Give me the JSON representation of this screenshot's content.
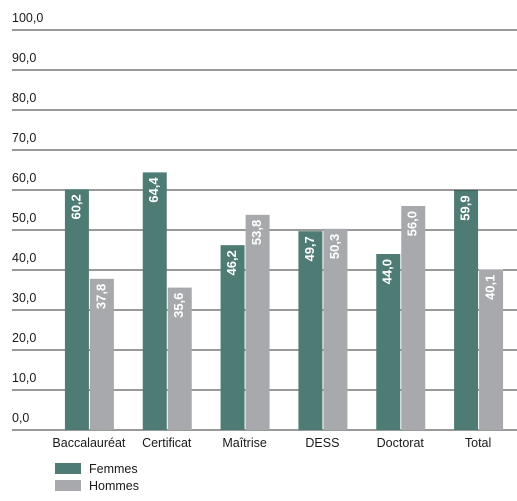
{
  "chart_data": {
    "type": "bar",
    "categories": [
      "Baccalauréat",
      "Certificat",
      "Maîtrise",
      "DESS",
      "Doctorat",
      "Total"
    ],
    "series": [
      {
        "name": "Femmes",
        "color": "#4e7b73",
        "values": [
          60.2,
          64.4,
          46.2,
          49.7,
          44.0,
          59.9
        ],
        "value_labels": [
          "60,2",
          "64,4",
          "46,2",
          "49,7",
          "44,0",
          "59,9"
        ]
      },
      {
        "name": "Hommes",
        "color": "#a7a9ac",
        "values": [
          37.8,
          35.6,
          53.8,
          50.3,
          56.0,
          40.1
        ],
        "value_labels": [
          "37,8",
          "35,6",
          "53,8",
          "50,3",
          "56,0",
          "40,1"
        ]
      }
    ],
    "ylim": [
      0,
      100
    ],
    "yticks": [
      {
        "value": 0,
        "label": "0,0"
      },
      {
        "value": 10,
        "label": "10,0"
      },
      {
        "value": 20,
        "label": "20,0"
      },
      {
        "value": 30,
        "label": "30,0"
      },
      {
        "value": 40,
        "label": "40,0"
      },
      {
        "value": 50,
        "label": "50,0"
      },
      {
        "value": 60,
        "label": "60,0"
      },
      {
        "value": 70,
        "label": "70,0"
      },
      {
        "value": 80,
        "label": "80,0"
      },
      {
        "value": 90,
        "label": "90,0"
      },
      {
        "value": 100,
        "label": "100,0"
      }
    ],
    "grid": true,
    "legend": "bottom-left"
  }
}
